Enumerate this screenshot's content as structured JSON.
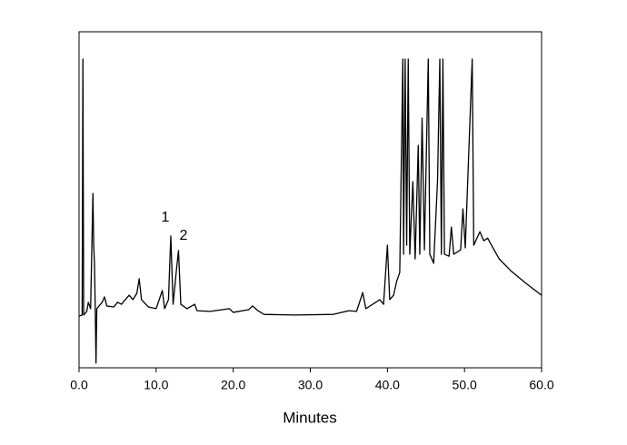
{
  "chart_data": {
    "type": "line",
    "xlabel": "Minutes",
    "x": [
      0.0,
      0.4,
      0.5,
      0.6,
      1.0,
      1.2,
      1.5,
      1.8,
      1.9,
      2.0,
      2.1,
      2.2,
      2.3,
      3.0,
      3.3,
      3.6,
      4.5,
      5.0,
      5.5,
      6.0,
      6.5,
      7.0,
      7.5,
      7.8,
      8.1,
      9.0,
      10.0,
      10.8,
      11.1,
      11.6,
      11.9,
      12.2,
      12.6,
      12.9,
      13.2,
      14.0,
      15.0,
      15.3,
      17.0,
      19.5,
      20.0,
      22.0,
      22.5,
      23.2,
      24.0,
      28.0,
      33.0,
      35.0,
      36.0,
      36.8,
      37.2,
      38.5,
      39.0,
      39.5,
      40.0,
      40.3,
      40.8,
      41.2,
      41.6,
      42.0,
      42.1,
      42.3,
      42.5,
      42.7,
      42.9,
      43.3,
      43.6,
      44.0,
      44.2,
      44.5,
      44.8,
      45.3,
      45.5,
      46.0,
      46.5,
      46.8,
      47.0,
      47.2,
      47.4,
      48.0,
      48.3,
      48.6,
      49.5,
      49.8,
      50.1,
      51.0,
      51.2,
      52.0,
      52.5,
      53.0,
      53.5,
      54.5,
      56.0,
      58.0,
      60.0
    ],
    "series": [
      {
        "color": "#000000",
        "values": [
          15.4,
          15.7,
          91.9,
          15.7,
          16.8,
          19.5,
          17.6,
          51.9,
          36.5,
          31.1,
          17.6,
          1.4,
          17.6,
          19.5,
          21.1,
          18.4,
          18.1,
          19.5,
          18.9,
          20.3,
          21.6,
          20.3,
          22.2,
          26.5,
          20.3,
          18.1,
          17.6,
          23.0,
          17.6,
          20.3,
          39.2,
          18.9,
          28.4,
          34.9,
          18.9,
          17.6,
          18.9,
          17.0,
          16.8,
          17.6,
          16.5,
          17.3,
          18.4,
          17.0,
          15.9,
          15.7,
          15.9,
          17.0,
          16.8,
          22.4,
          17.6,
          19.5,
          20.3,
          18.9,
          36.5,
          20.3,
          21.6,
          25.7,
          28.4,
          91.9,
          33.8,
          91.9,
          36.5,
          91.9,
          33.8,
          55.4,
          32.4,
          66.2,
          33.8,
          74.3,
          35.1,
          91.9,
          33.8,
          31.1,
          55.4,
          91.9,
          33.8,
          91.9,
          33.8,
          33.2,
          41.9,
          33.8,
          35.1,
          47.3,
          35.7,
          91.9,
          36.5,
          40.5,
          37.8,
          38.6,
          36.5,
          32.4,
          28.9,
          25.1,
          21.6
        ]
      }
    ],
    "xlim": [
      0,
      60
    ],
    "ylim": [
      0,
      100
    ],
    "xticks": [
      {
        "value": 0,
        "label": "0.0"
      },
      {
        "value": 10,
        "label": "10.0"
      },
      {
        "value": 20,
        "label": "20.0"
      },
      {
        "value": 30,
        "label": "30.0"
      },
      {
        "value": 40,
        "label": "40.0"
      },
      {
        "value": 50,
        "label": "50.0"
      },
      {
        "value": 60,
        "label": "60.0"
      }
    ],
    "annotations": [
      "1",
      "2"
    ]
  }
}
